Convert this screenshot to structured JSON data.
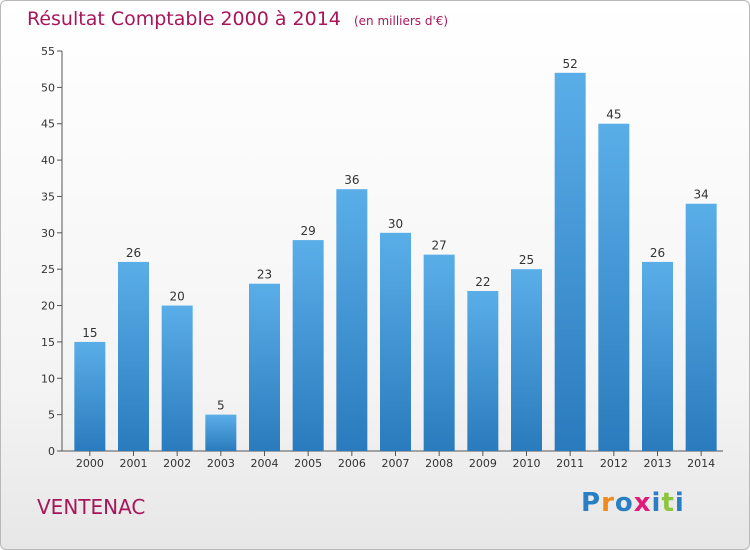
{
  "header": {
    "title": "Résultat Comptable 2000 à 2014",
    "unit": "(en milliers d'€)"
  },
  "footer": {
    "place": "VENTENAC",
    "logo_text": "Proxiti",
    "logo_colors": [
      "#2a7fc4",
      "#f08a1c",
      "#2a7fc4",
      "#e01b7b",
      "#2a7fc4",
      "#8cc63f",
      "#2a7fc4"
    ]
  },
  "colors": {
    "bar_top": "#5aaee8",
    "bar_bottom": "#2a7bbd",
    "title": "#a8165a"
  },
  "chart_data": {
    "type": "bar",
    "title": "Résultat Comptable 2000 à 2014",
    "xlabel": "",
    "ylabel": "",
    "categories": [
      "2000",
      "2001",
      "2002",
      "2003",
      "2004",
      "2005",
      "2006",
      "2007",
      "2008",
      "2009",
      "2010",
      "2011",
      "2012",
      "2013",
      "2014"
    ],
    "values": [
      15,
      26,
      20,
      5,
      23,
      29,
      36,
      30,
      27,
      22,
      25,
      52,
      45,
      26,
      34
    ],
    "ylim": [
      0,
      55
    ],
    "yticks": [
      0,
      5,
      10,
      15,
      20,
      25,
      30,
      35,
      40,
      45,
      50,
      55
    ],
    "grid": false,
    "data_labels": true
  }
}
